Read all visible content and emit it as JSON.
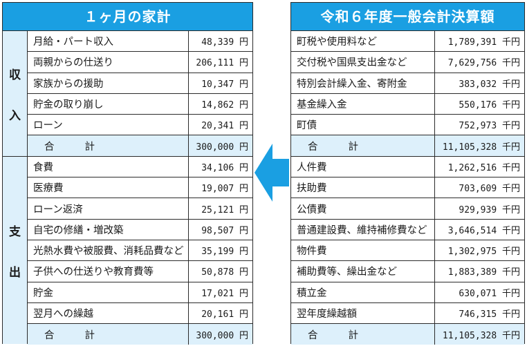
{
  "colors": {
    "title_bg": "#1a9fe2",
    "total_bg": "#ddf0fb",
    "arrow": "#1a9fe2"
  },
  "household": {
    "title": "１ヶ月の家計",
    "income_label": "収入",
    "expense_label": "支出",
    "income": [
      {
        "label": "月給・パート収入",
        "amount": "48,339 円"
      },
      {
        "label": "両親からの仕送り",
        "amount": "206,111 円"
      },
      {
        "label": "家族からの援助",
        "amount": "10,347 円"
      },
      {
        "label": "貯金の取り崩し",
        "amount": "14,862 円"
      },
      {
        "label": "ローン",
        "amount": "20,341 円"
      }
    ],
    "income_total": {
      "label_a": "合",
      "label_b": "計",
      "amount": "300,000 円"
    },
    "expense": [
      {
        "label": "食費",
        "amount": "34,106 円"
      },
      {
        "label": "医療費",
        "amount": "19,007 円"
      },
      {
        "label": "ローン返済",
        "amount": "25,121 円"
      },
      {
        "label": "自宅の修繕・増改築",
        "amount": "98,507 円"
      },
      {
        "label": "光熱水費や被服費、消耗品費など",
        "amount": "35,199 円"
      },
      {
        "label": "子供への仕送りや教育費等",
        "amount": "50,878 円"
      },
      {
        "label": "貯金",
        "amount": "17,021 円"
      },
      {
        "label": "翌月への繰越",
        "amount": "20,161 円"
      }
    ],
    "expense_total": {
      "label_a": "合",
      "label_b": "計",
      "amount": "300,000 円"
    }
  },
  "budget": {
    "title": "令和６年度一般会計決算額",
    "revenue": [
      {
        "label": "町税や使用料など",
        "amount": "1,789,391 千円"
      },
      {
        "label": "交付税や国県支出金など",
        "amount": "7,629,756 千円"
      },
      {
        "label": "特別会計繰入金、寄附金",
        "amount": "383,032 千円"
      },
      {
        "label": "基金繰入金",
        "amount": "550,176 千円"
      },
      {
        "label": "町債",
        "amount": "752,973 千円"
      }
    ],
    "revenue_total": {
      "label_a": "合",
      "label_b": "計",
      "amount": "11,105,328 千円"
    },
    "expenditure": [
      {
        "label": "人件費",
        "amount": "1,262,516 千円"
      },
      {
        "label": "扶助費",
        "amount": "703,609 千円"
      },
      {
        "label": "公債費",
        "amount": "929,939 千円"
      },
      {
        "label": "普通建設費、維持補修費など",
        "amount": "3,646,514 千円"
      },
      {
        "label": "物件費",
        "amount": "1,302,975 千円"
      },
      {
        "label": "補助費等、繰出金など",
        "amount": "1,883,389 千円"
      },
      {
        "label": "積立金",
        "amount": "630,071 千円"
      },
      {
        "label": "翌年度繰越額",
        "amount": "746,315 千円"
      }
    ],
    "expenditure_total": {
      "label_a": "合",
      "label_b": "計",
      "amount": "11,105,328 千円"
    }
  }
}
